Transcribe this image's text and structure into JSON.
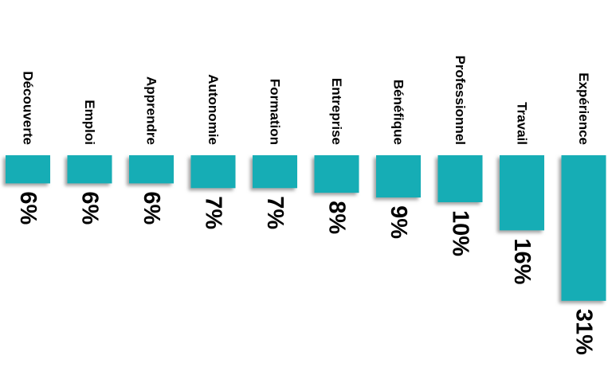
{
  "chart_data": {
    "type": "bar",
    "orientation": "vertical-rotated",
    "categories": [
      "Découverte",
      "Emploi",
      "Apprendre",
      "Autonomie",
      "Formation",
      "Entreprise",
      "Bénéfique",
      "Professionnel",
      "Travail",
      "Expérience"
    ],
    "values": [
      6,
      6,
      6,
      7,
      7,
      8,
      9,
      10,
      16,
      31
    ],
    "value_labels": [
      "6%",
      "6%",
      "6%",
      "7%",
      "7%",
      "8%",
      "9%",
      "10%",
      "16%",
      "31%"
    ],
    "unit": "%",
    "title": "",
    "xlabel": "",
    "ylabel": "",
    "grid": false,
    "legend": "none",
    "bar_color": "#14adb5",
    "shadow_color": "#9a9a9a"
  }
}
